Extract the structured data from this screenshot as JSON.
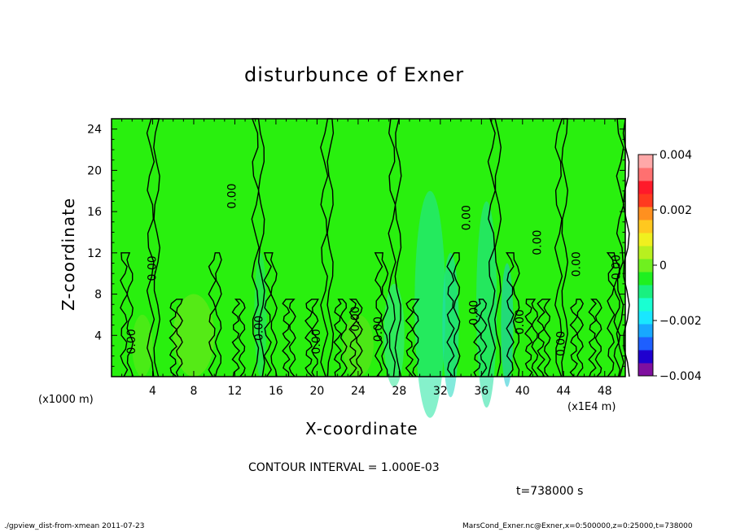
{
  "chart_data": {
    "type": "heatmap",
    "title": "disturbunce of Exner",
    "xlabel": "X-coordinate",
    "ylabel": "Z-coordinate",
    "x_unit_label": "(x1E4 m)",
    "y_unit_label": "(x1000 m)",
    "xlim": [
      0,
      50
    ],
    "ylim": [
      0,
      25
    ],
    "x_ticks": [
      "4",
      "8",
      "12",
      "16",
      "20",
      "24",
      "28",
      "32",
      "36",
      "40",
      "44",
      "48"
    ],
    "y_ticks": [
      "4",
      "8",
      "12",
      "16",
      "20",
      "24"
    ],
    "colorbar": {
      "range": [
        -0.004,
        0.004
      ],
      "tick_labels": [
        "0.004",
        "0.002",
        "0",
        "−0.002",
        "−0.004"
      ],
      "tick_values": [
        0.004,
        0.002,
        0,
        -0.002,
        -0.004
      ],
      "colors": [
        "#7f0f9f",
        "#1f00cf",
        "#1e5fff",
        "#18a8ff",
        "#19e7ff",
        "#19ffd2",
        "#19f080",
        "#1ff020",
        "#6ff01f",
        "#b8f01f",
        "#f0f01f",
        "#ffc81f",
        "#ff901f",
        "#ff3a1f",
        "#ff1a2a",
        "#ff7070",
        "#ffa8a8"
      ]
    },
    "contour_label": "0.00",
    "contour_interval": "CONTOUR INTERVAL = 1.000E-03",
    "time": "t=738000 s",
    "background_color": "#29f00e",
    "contour_lines_x": [
      1.2,
      3.8,
      6.0,
      9.8,
      12.1,
      14.0,
      15.2,
      17.0,
      19.2,
      20.7,
      22.0,
      23.5,
      26.0,
      27.3,
      29.0,
      33.0,
      35.6,
      37.0,
      38.8,
      40.6,
      41.8,
      43.5,
      45.0,
      46.8,
      48.6,
      49.5
    ],
    "contour_labels_x": [
      2.3,
      4.3,
      12.1,
      14.7,
      20.3,
      24.1,
      26.3,
      34.9,
      35.6,
      40.1,
      41.8,
      44.1,
      45.6,
      49.5
    ],
    "contour_labels_z": [
      3.4,
      10.5,
      17.5,
      4.7,
      3.4,
      5.6,
      4.6,
      15.4,
      6.2,
      5.3,
      13.0,
      3.2,
      10.9,
      10.6
    ]
  },
  "footer": {
    "left": "./gpview_dist-from-xmean  2011-07-23",
    "right": "MarsCond_Exner.nc@Exner,x=0:500000,z=0:25000,t=738000"
  }
}
